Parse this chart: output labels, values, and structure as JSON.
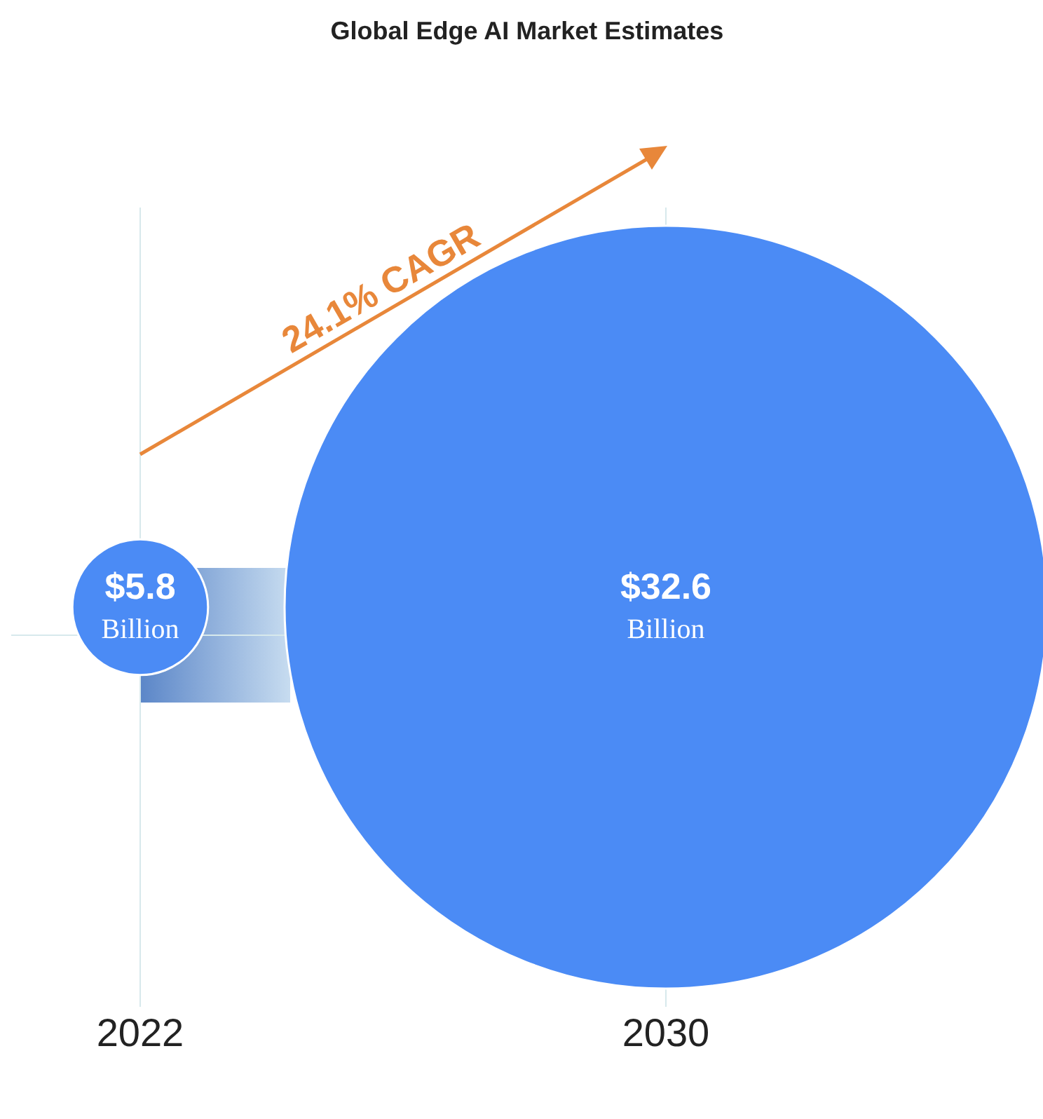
{
  "chart_data": {
    "type": "other",
    "title": "Global Edge AI Market Estimates",
    "categories": [
      "2022",
      "2030"
    ],
    "values": [
      5.8,
      32.6
    ],
    "value_labels": [
      "$5.8\nBillion",
      "$32.6\nBillion"
    ],
    "color": "#4b8bf5",
    "annotations": [
      "24.1% CAGR"
    ]
  }
}
